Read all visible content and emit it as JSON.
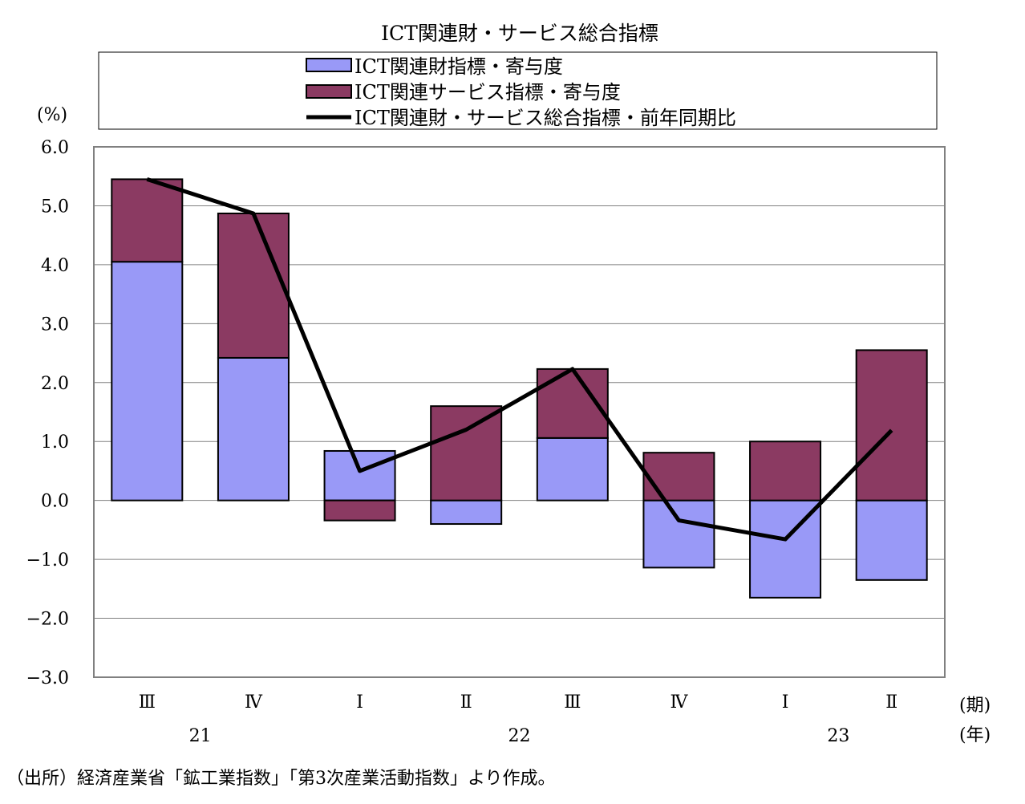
{
  "chart_data": {
    "type": "bar",
    "title": "ICT関連財・サービス総合指標",
    "ylabel": "(%)",
    "xlabel_period": "(期)",
    "xlabel_year": "(年)",
    "ylim": [
      -3.0,
      6.0
    ],
    "yticks": [
      "6.0",
      "5.0",
      "4.0",
      "3.0",
      "2.0",
      "1.0",
      "0.0",
      "-1.0",
      "-2.0",
      "-3.0"
    ],
    "categories": [
      "Ⅲ",
      "Ⅳ",
      "Ⅰ",
      "Ⅱ",
      "Ⅲ",
      "Ⅳ",
      "Ⅰ",
      "Ⅱ"
    ],
    "years": [
      {
        "label": "21",
        "at": 0.5
      },
      {
        "label": "22",
        "at": 3.5
      },
      {
        "label": "23",
        "at": 6.5
      }
    ],
    "grid": true,
    "legend_position": "top",
    "series": [
      {
        "name": "ICT関連財指標・寄与度",
        "kind": "bar",
        "color": "#9999F7",
        "values": [
          4.05,
          2.42,
          0.84,
          -0.4,
          1.06,
          -1.14,
          -1.65,
          -1.35
        ]
      },
      {
        "name": "ICT関連サービス指標・寄与度",
        "kind": "bar",
        "color": "#8B3A62",
        "values": [
          1.4,
          2.45,
          -0.34,
          1.6,
          1.17,
          0.81,
          1.0,
          2.55
        ]
      },
      {
        "name": "ICT関連財・サービス総合指標・前年同期比",
        "kind": "line",
        "color": "#000000",
        "values": [
          5.45,
          4.87,
          0.5,
          1.2,
          2.23,
          -0.34,
          -0.66,
          1.19
        ]
      }
    ]
  },
  "source_note": "（出所）経済産業省「鉱工業指数」「第3次産業活動指数」より作成。"
}
